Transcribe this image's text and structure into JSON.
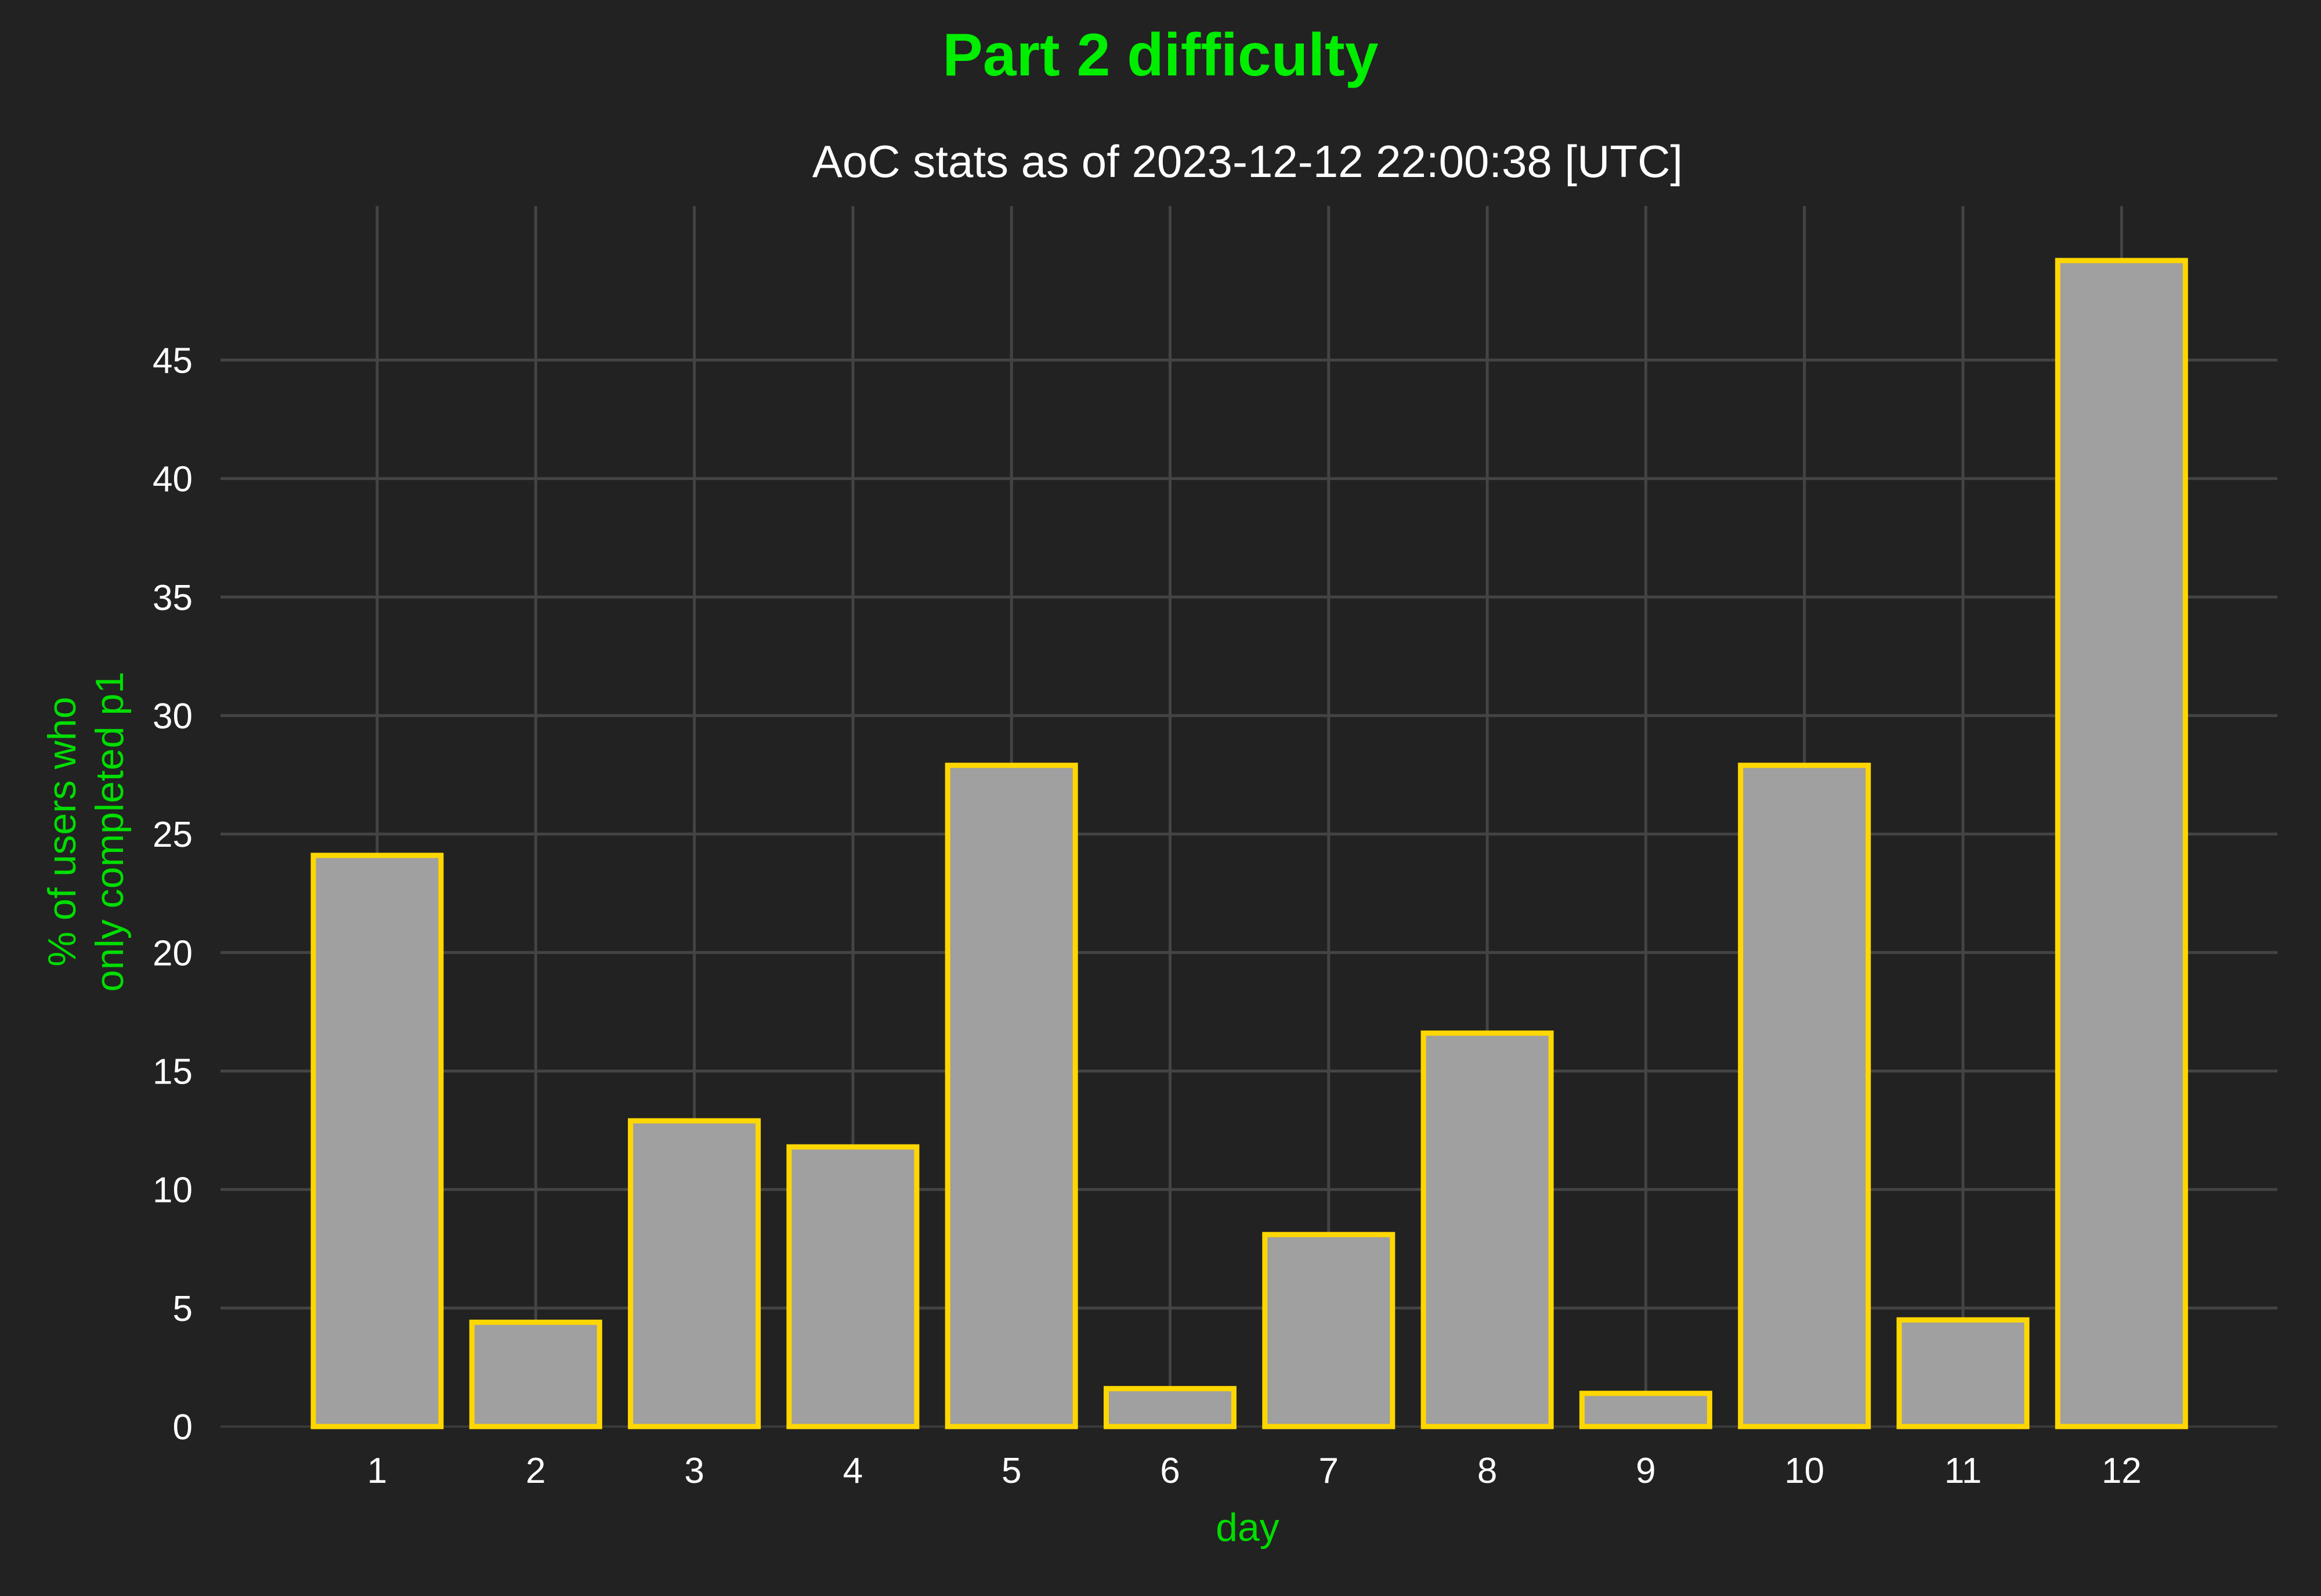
{
  "chart_data": {
    "type": "bar",
    "title": "Part 2 difficulty",
    "subtitle": "AoC stats as of 2023-12-12 22:00:38 [UTC]",
    "xlabel": "day",
    "ylabel": [
      "% of users who",
      "only completed p1"
    ],
    "categories": [
      "1",
      "2",
      "3",
      "4",
      "5",
      "6",
      "7",
      "8",
      "9",
      "10",
      "11",
      "12"
    ],
    "values": [
      24.1,
      4.4,
      12.9,
      11.8,
      27.9,
      1.6,
      8.1,
      16.6,
      1.4,
      27.9,
      4.5,
      49.2
    ],
    "yticks": [
      0,
      5,
      10,
      15,
      20,
      25,
      30,
      35,
      40,
      45
    ],
    "ylim": [
      0,
      51.5
    ],
    "grid": true,
    "colors": {
      "background": "#222222",
      "bar_fill": "#a0a0a0",
      "bar_edge": "#ffd700",
      "title": "#00ee00",
      "axis_label": "#00dd00",
      "text": "#ffffff",
      "grid": "#444444"
    }
  }
}
